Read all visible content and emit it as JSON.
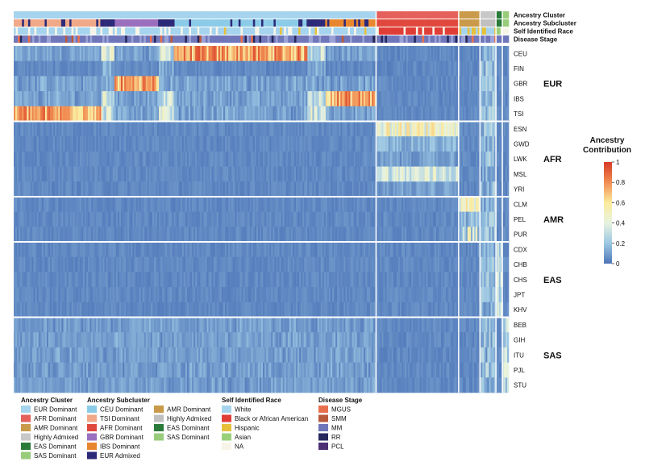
{
  "chart_data": {
    "type": "heatmap",
    "title": "",
    "annotation_tracks": [
      "Ancestry Cluster",
      "Ancestry Subcluster",
      "Self Identified Race",
      "Disease Stage"
    ],
    "row_groups": [
      {
        "name": "EUR",
        "rows": [
          "CEU",
          "FIN",
          "GBR",
          "IBS",
          "TSI"
        ]
      },
      {
        "name": "AFR",
        "rows": [
          "ESN",
          "GWD",
          "LWK",
          "MSL",
          "YRI"
        ]
      },
      {
        "name": "AMR",
        "rows": [
          "CLM",
          "PEL",
          "PUR"
        ]
      },
      {
        "name": "EAS",
        "rows": [
          "CDX",
          "CHB",
          "CHS",
          "JPT",
          "KHV"
        ]
      },
      {
        "name": "SAS",
        "rows": [
          "BEB",
          "GIH",
          "ITU",
          "PJL",
          "STU"
        ]
      }
    ],
    "column_clusters": [
      {
        "name": "EUR Dominant",
        "fraction": 0.68,
        "color": "#a6d4ee"
      },
      {
        "name": "AFR Dominant",
        "fraction": 0.155,
        "color": "#e5605a"
      },
      {
        "name": "AMR Dominant",
        "fraction": 0.04,
        "color": "#c99a4a"
      },
      {
        "name": "Highly Admixed",
        "fraction": 0.03,
        "color": "#c8c8c8"
      },
      {
        "name": "EAS Dominant",
        "fraction": 0.012,
        "color": "#2a7a3a"
      },
      {
        "name": "SAS Dominant",
        "fraction": 0.012,
        "color": "#98cc7a"
      }
    ],
    "colorbar": {
      "title": [
        "Ancestry",
        "Contribution"
      ],
      "range": [
        0,
        1
      ],
      "ticks": [
        0,
        0.2,
        0.4,
        0.6,
        0.8,
        1
      ]
    }
  },
  "legends": [
    {
      "title": "Ancestry Cluster",
      "items": [
        {
          "label": "EUR Dominant",
          "color": "#a6d4ee"
        },
        {
          "label": "AFR Dominant",
          "color": "#e5605a"
        },
        {
          "label": "AMR Dominant",
          "color": "#c99a4a"
        },
        {
          "label": "Highly Admixed",
          "color": "#c8c8c8"
        },
        {
          "label": "EAS Dominant",
          "color": "#2a7a3a"
        },
        {
          "label": "SAS Dominant",
          "color": "#98cc7a"
        }
      ]
    },
    {
      "title": "Ancestry Subcluster",
      "items": [
        {
          "label": "CEU Dominant",
          "color": "#8ccbe8"
        },
        {
          "label": "TSI Dominant",
          "color": "#f0a888"
        },
        {
          "label": "AFR Dominant",
          "color": "#e0483e"
        },
        {
          "label": "GBR Dominant",
          "color": "#9a6fbe"
        },
        {
          "label": "IBS Dominant",
          "color": "#e8862e"
        },
        {
          "label": "EUR Admixed",
          "color": "#2c2a78"
        },
        {
          "label": "AMR Dominant",
          "color": "#c99a4a"
        },
        {
          "label": "Highly Admixed",
          "color": "#c0c0c0"
        },
        {
          "label": "EAS Dominant",
          "color": "#2a7a3a"
        },
        {
          "label": "SAS Dominant",
          "color": "#98cc7a"
        }
      ]
    },
    {
      "title": "Self Identified Race",
      "items": [
        {
          "label": "White",
          "color": "#a6d4ee"
        },
        {
          "label": "Black or African American",
          "color": "#e03d36"
        },
        {
          "label": "Hispanic",
          "color": "#e6c03a"
        },
        {
          "label": "Asian",
          "color": "#9ad07a"
        },
        {
          "label": "NA",
          "color": "#f7f5e8"
        }
      ]
    },
    {
      "title": "Disease Stage",
      "items": [
        {
          "label": "MGUS",
          "color": "#e8704e"
        },
        {
          "label": "SMM",
          "color": "#b85a3c"
        },
        {
          "label": "MM",
          "color": "#6f77ba"
        },
        {
          "label": "RR",
          "color": "#26285e"
        },
        {
          "label": "PCL",
          "color": "#4b2f73"
        }
      ]
    }
  ]
}
